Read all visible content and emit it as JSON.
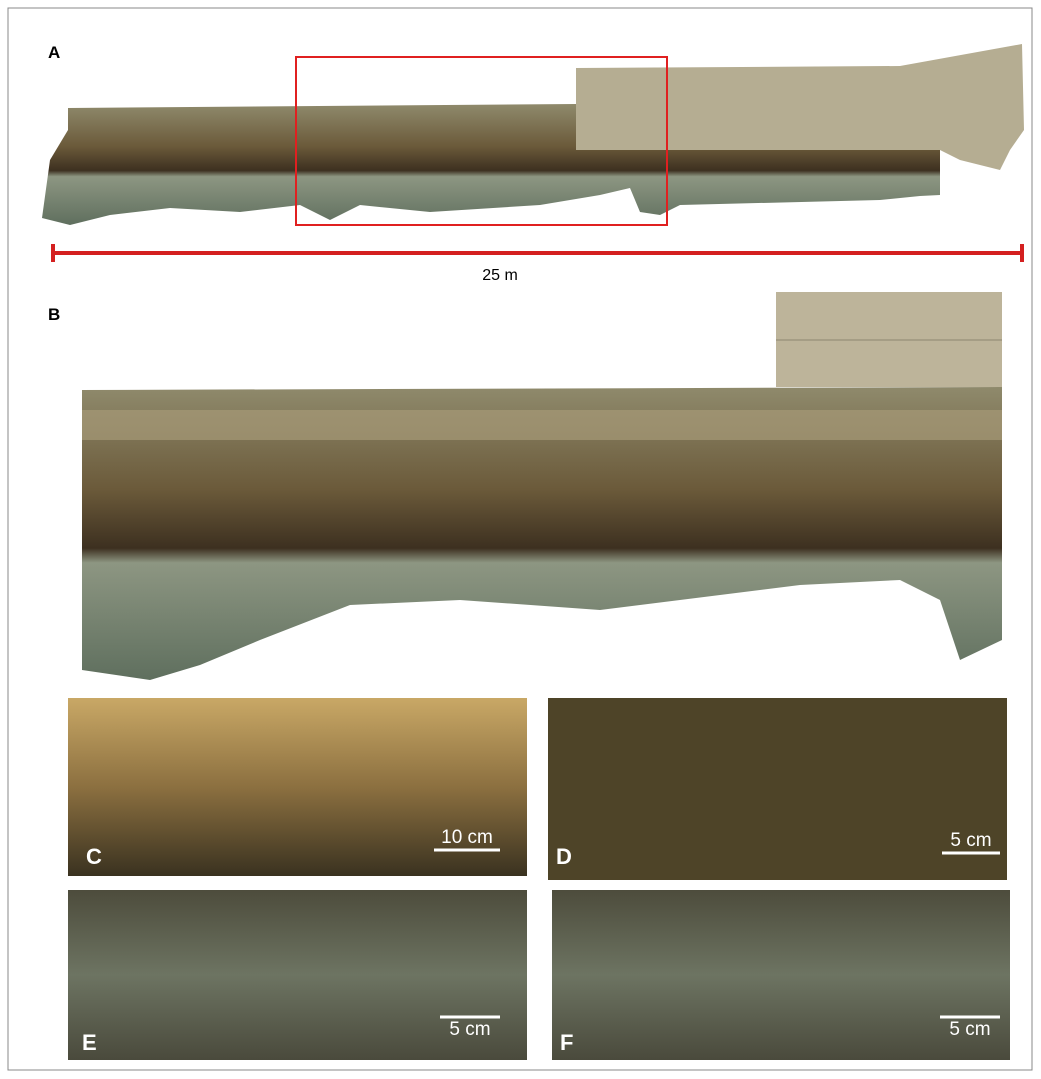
{
  "panels": [
    {
      "label": "A",
      "scale": "25 m"
    },
    {
      "label": "B"
    },
    {
      "label": "C",
      "scale": "10 cm"
    },
    {
      "label": "D",
      "scale": "5 cm"
    },
    {
      "label": "E",
      "scale": "5 cm"
    },
    {
      "label": "F",
      "scale": "5 cm"
    }
  ]
}
